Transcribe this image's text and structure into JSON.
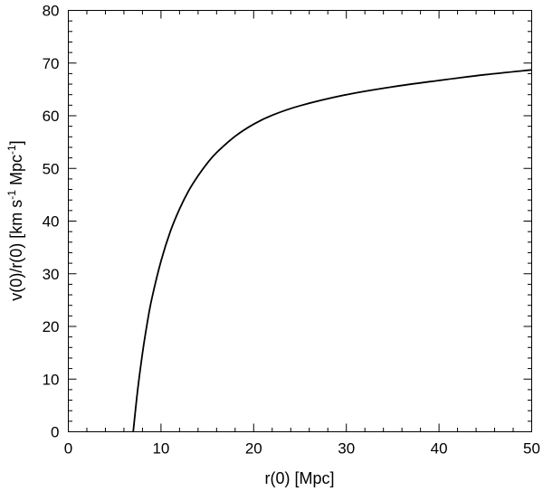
{
  "chart_data": {
    "type": "line",
    "title": "",
    "xlabel": "r(0) [Mpc]",
    "ylabel": {
      "part1": "v(0)/r(0) [km s",
      "sup1": "-1",
      "part2": " Mpc",
      "sup2": "-1",
      "part3": "]"
    },
    "xlim": [
      0,
      50
    ],
    "ylim": [
      0,
      80
    ],
    "xticks": [
      0,
      10,
      20,
      30,
      40,
      50
    ],
    "yticks": [
      0,
      10,
      20,
      30,
      40,
      50,
      60,
      70,
      80
    ],
    "xminor_step": 2,
    "yminor_step": 2,
    "grid": false,
    "series": [
      {
        "x": [
          7,
          7.5,
          8,
          8.5,
          9,
          10,
          11,
          12,
          13,
          14,
          15,
          16,
          18,
          20,
          22,
          25,
          30,
          35,
          40,
          45,
          50
        ],
        "values": [
          0,
          8.2,
          14.9,
          20.5,
          25.2,
          32.4,
          38.0,
          42.3,
          45.8,
          48.6,
          51.0,
          53.0,
          56.1,
          58.4,
          60.1,
          61.9,
          64.0,
          65.5,
          66.7,
          67.8,
          68.7
        ]
      }
    ]
  }
}
